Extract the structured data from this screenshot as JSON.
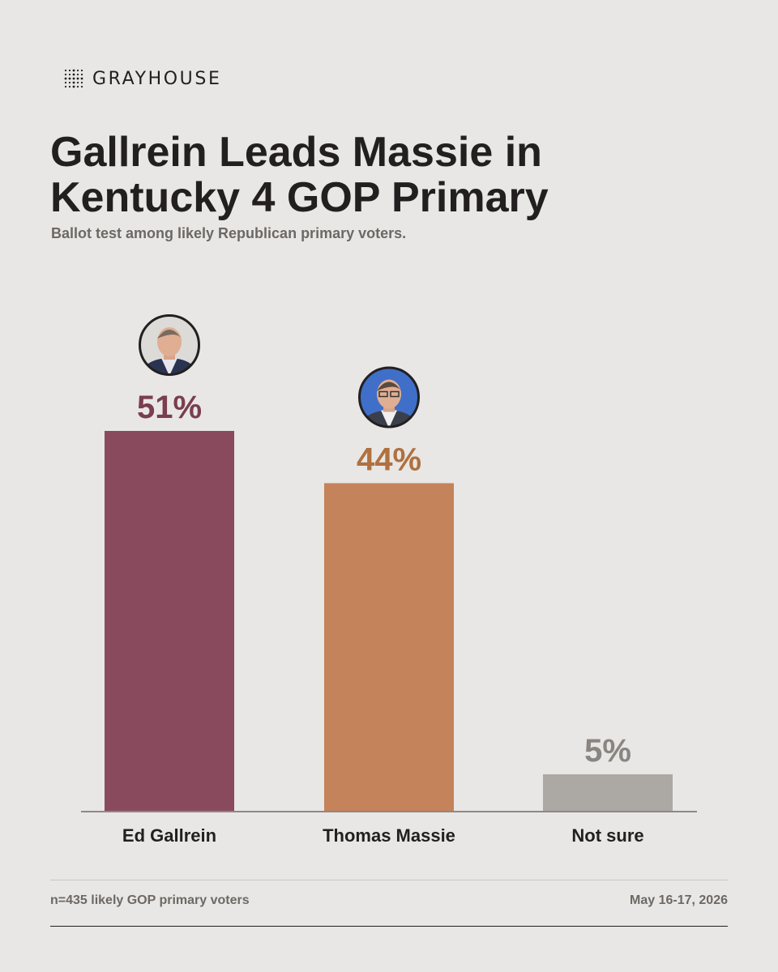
{
  "brand": {
    "name": "GRAYHOUSE",
    "logo_icon": "dot-grid-icon"
  },
  "chart_data": {
    "type": "bar",
    "title": "Gallrein Leads Massie in Kentucky 4 GOP Primary",
    "subtitle": "Ballot test among likely Republican primary voters.",
    "categories": [
      "Ed Gallrein",
      "Thomas Massie",
      "Not sure"
    ],
    "values": [
      51,
      44,
      5
    ],
    "value_labels": [
      "51%",
      "44%",
      "5%"
    ],
    "colors": [
      "#8a4a5e",
      "#c4835a",
      "#aca8a3"
    ],
    "label_colors": [
      "#7a3d52",
      "#b0703f",
      "#8a8580"
    ],
    "ylim": [
      0,
      51
    ],
    "grid": false,
    "legend": "none",
    "avatars": [
      "portrait-gallrein-icon",
      "portrait-massie-icon",
      null
    ]
  },
  "footer": {
    "sample": "n=435 likely GOP primary voters",
    "dates": "May 16-17, 2026"
  }
}
